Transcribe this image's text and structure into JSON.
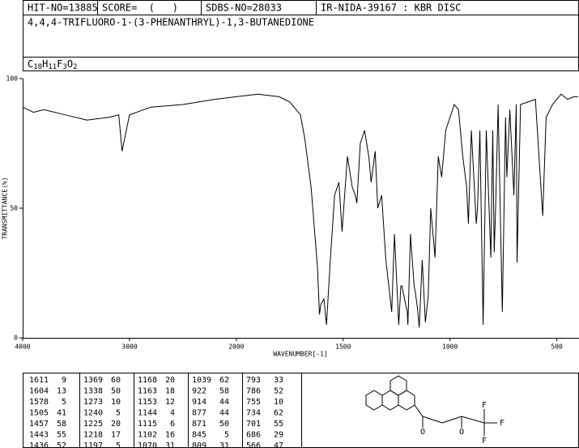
{
  "header": {
    "hit_no": "HIT-NO=13885",
    "score": "SCORE=  (   )",
    "sdbs_no": "SDBS-NO=28033",
    "method": "IR-NIDA-39167 : KBR DISC",
    "name": "4,4,4-TRIFLUORO-1-(3-PHENANTHRYL)-1,3-BUTANEDIONE",
    "formula": [
      "C",
      "18",
      "H",
      "11",
      "F",
      "3",
      "O",
      "2"
    ]
  },
  "chart_data": {
    "type": "line",
    "x_label": "WAVENUMBER[-1]",
    "y_label": "TRANSMITTANCE(%)",
    "color": "#000000",
    "xlim": [
      4000,
      400
    ],
    "xscale_change": 2000,
    "xticks": [
      4000,
      3000,
      2000,
      1500,
      1000,
      500
    ],
    "ylim": [
      0,
      100
    ],
    "yticks": [
      0,
      50,
      100
    ],
    "x": [
      4000,
      3900,
      3800,
      3600,
      3400,
      3200,
      3100,
      3070,
      3000,
      2800,
      2500,
      2200,
      2000,
      1900,
      1800,
      1750,
      1700,
      1680,
      1650,
      1620,
      1611,
      1604,
      1590,
      1578,
      1560,
      1540,
      1520,
      1505,
      1480,
      1457,
      1443,
      1436,
      1420,
      1400,
      1380,
      1369,
      1350,
      1338,
      1320,
      1300,
      1273,
      1260,
      1240,
      1230,
      1225,
      1218,
      1200,
      1197,
      1185,
      1168,
      1163,
      1153,
      1144,
      1130,
      1115,
      1102,
      1090,
      1070,
      1055,
      1039,
      1020,
      1000,
      980,
      960,
      940,
      922,
      914,
      900,
      877,
      871,
      860,
      845,
      830,
      809,
      800,
      793,
      786,
      775,
      755,
      740,
      734,
      720,
      701,
      690,
      686,
      670,
      600,
      566,
      550,
      520,
      500,
      480,
      450,
      420,
      400
    ],
    "values": [
      89,
      87,
      88,
      86,
      84,
      85,
      86,
      72,
      86,
      89,
      90,
      92,
      93,
      94,
      93,
      91,
      86,
      77,
      58,
      27,
      9,
      13,
      15,
      5,
      30,
      55,
      60,
      41,
      70,
      58,
      55,
      52,
      75,
      80,
      70,
      60,
      72,
      50,
      55,
      30,
      10,
      40,
      5,
      20,
      20,
      17,
      10,
      5,
      40,
      20,
      18,
      12,
      4,
      30,
      6,
      16,
      50,
      31,
      70,
      62,
      80,
      85,
      90,
      88,
      70,
      58,
      44,
      80,
      44,
      50,
      80,
      5,
      80,
      31,
      80,
      33,
      52,
      90,
      10,
      85,
      62,
      88,
      55,
      90,
      29,
      90,
      92,
      47,
      85,
      90,
      92,
      94,
      92,
      93,
      93
    ]
  },
  "peaks": {
    "rows": [
      [
        [
          "1611",
          "9"
        ],
        [
          "1369",
          "60"
        ],
        [
          "1168",
          "20"
        ],
        [
          "1039",
          "62"
        ],
        [
          "793",
          "33"
        ]
      ],
      [
        [
          "1604",
          "13"
        ],
        [
          "1338",
          "50"
        ],
        [
          "1163",
          "18"
        ],
        [
          "922",
          "58"
        ],
        [
          "786",
          "52"
        ]
      ],
      [
        [
          "1578",
          "5"
        ],
        [
          "1273",
          "10"
        ],
        [
          "1153",
          "12"
        ],
        [
          "914",
          "44"
        ],
        [
          "755",
          "10"
        ]
      ],
      [
        [
          "1505",
          "41"
        ],
        [
          "1240",
          "5"
        ],
        [
          "1144",
          "4"
        ],
        [
          "877",
          "44"
        ],
        [
          "734",
          "62"
        ]
      ],
      [
        [
          "1457",
          "58"
        ],
        [
          "1225",
          "20"
        ],
        [
          "1115",
          "6"
        ],
        [
          "871",
          "50"
        ],
        [
          "701",
          "55"
        ]
      ],
      [
        [
          "1443",
          "55"
        ],
        [
          "1218",
          "17"
        ],
        [
          "1102",
          "16"
        ],
        [
          "845",
          "5"
        ],
        [
          "686",
          "29"
        ]
      ],
      [
        [
          "1436",
          "52"
        ],
        [
          "1197",
          "5"
        ],
        [
          "1070",
          "31"
        ],
        [
          "809",
          "31"
        ],
        [
          "566",
          "47"
        ]
      ]
    ]
  },
  "structure": {
    "atoms": [
      "O",
      "O",
      "F",
      "F",
      "F"
    ]
  }
}
